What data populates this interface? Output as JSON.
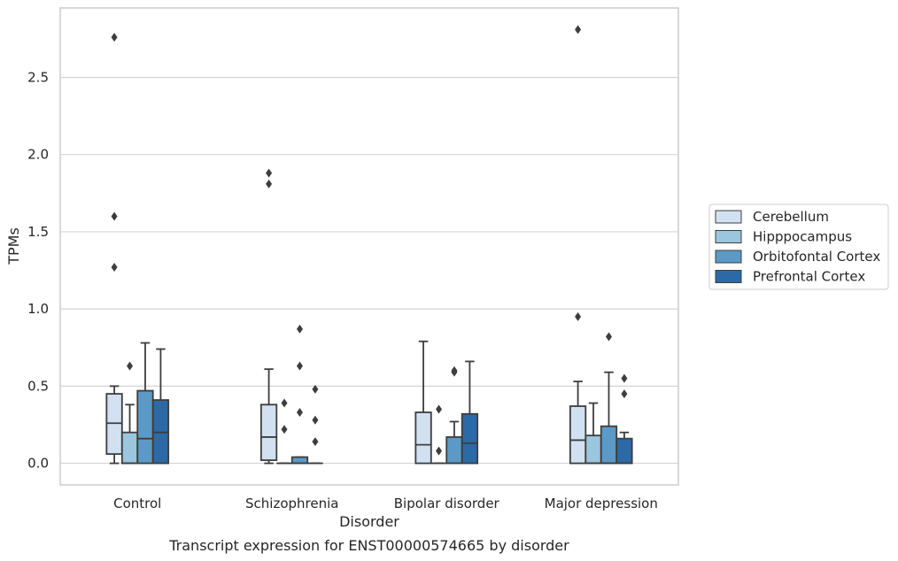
{
  "chart_data": {
    "type": "box",
    "xlabel": "Disorder",
    "ylabel": "TPMs",
    "caption": "Transcript expression for ENST00000574665 by disorder",
    "ylim": [
      -0.14,
      2.95
    ],
    "yticks": [
      "0.0",
      "0.5",
      "1.0",
      "1.5",
      "2.0",
      "2.5"
    ],
    "grid": true,
    "legend_position": "right",
    "categories": [
      "Control",
      "Schizophrenia",
      "Bipolar disorder",
      "Major depression"
    ],
    "series": [
      {
        "name": "Cerebellum",
        "color": "#d1e1f2",
        "boxes": [
          {
            "whislo": 0.0,
            "q1": 0.06,
            "med": 0.26,
            "q3": 0.45,
            "whishi": 0.5,
            "fliers": [
              1.27,
              1.6,
              2.76
            ]
          },
          {
            "whislo": 0.0,
            "q1": 0.02,
            "med": 0.17,
            "q3": 0.38,
            "whishi": 0.61,
            "fliers": [
              1.81,
              1.88
            ]
          },
          {
            "whislo": 0.0,
            "q1": 0.0,
            "med": 0.12,
            "q3": 0.33,
            "whishi": 0.79,
            "fliers": []
          },
          {
            "whislo": 0.0,
            "q1": 0.0,
            "med": 0.15,
            "q3": 0.37,
            "whishi": 0.53,
            "fliers": [
              0.95,
              2.81
            ]
          }
        ]
      },
      {
        "name": "Hipppocampus",
        "color": "#9ac6de",
        "boxes": [
          {
            "whislo": 0.0,
            "q1": 0.0,
            "med": 0.0,
            "q3": 0.2,
            "whishi": 0.38,
            "fliers": [
              0.63
            ]
          },
          {
            "whislo": 0.0,
            "q1": 0.0,
            "med": 0.0,
            "q3": 0.0,
            "whishi": 0.0,
            "fliers": [
              0.22,
              0.39
            ]
          },
          {
            "whislo": 0.0,
            "q1": 0.0,
            "med": 0.0,
            "q3": 0.0,
            "whishi": 0.0,
            "fliers": [
              0.08,
              0.35
            ]
          },
          {
            "whislo": 0.0,
            "q1": 0.0,
            "med": 0.0,
            "q3": 0.18,
            "whishi": 0.39,
            "fliers": []
          }
        ]
      },
      {
        "name": "Orbitofontal Cortex",
        "color": "#5b9ac7",
        "boxes": [
          {
            "whislo": 0.0,
            "q1": 0.0,
            "med": 0.16,
            "q3": 0.47,
            "whishi": 0.78,
            "fliers": []
          },
          {
            "whislo": 0.0,
            "q1": 0.0,
            "med": 0.0,
            "q3": 0.04,
            "whishi": 0.04,
            "fliers": [
              0.33,
              0.63,
              0.87
            ]
          },
          {
            "whislo": 0.0,
            "q1": 0.0,
            "med": 0.0,
            "q3": 0.17,
            "whishi": 0.27,
            "fliers": [
              0.59,
              0.6
            ]
          },
          {
            "whislo": 0.0,
            "q1": 0.0,
            "med": 0.0,
            "q3": 0.24,
            "whishi": 0.59,
            "fliers": [
              0.82
            ]
          }
        ]
      },
      {
        "name": "Prefrontal Cortex",
        "color": "#2c6aa7",
        "boxes": [
          {
            "whislo": 0.0,
            "q1": 0.0,
            "med": 0.2,
            "q3": 0.41,
            "whishi": 0.74,
            "fliers": []
          },
          {
            "whislo": 0.0,
            "q1": 0.0,
            "med": 0.0,
            "q3": 0.0,
            "whishi": 0.0,
            "fliers": [
              0.14,
              0.28,
              0.48
            ]
          },
          {
            "whislo": 0.0,
            "q1": 0.0,
            "med": 0.13,
            "q3": 0.32,
            "whishi": 0.66,
            "fliers": []
          },
          {
            "whislo": 0.0,
            "q1": 0.0,
            "med": 0.0,
            "q3": 0.16,
            "whishi": 0.2,
            "fliers": [
              0.45,
              0.55
            ]
          }
        ]
      }
    ]
  }
}
